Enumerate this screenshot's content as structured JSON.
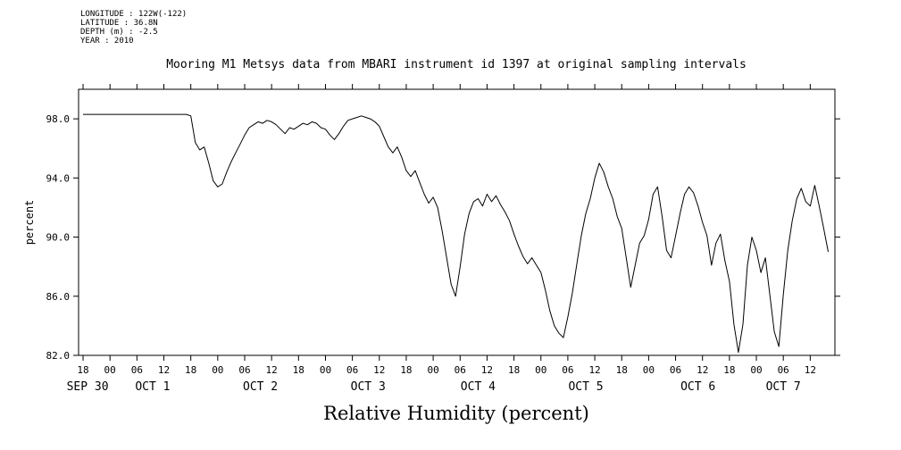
{
  "metadata": [
    "LONGITUDE : 122W(-122)",
    "LATITUDE : 36.8N",
    "DEPTH (m) : -2.5",
    "YEAR : 2010"
  ],
  "chart_data": {
    "type": "line",
    "title": "Mooring M1 Metsys data from MBARI instrument id 1397 at original sampling intervals",
    "ylabel": "percent",
    "xlabel": "Relative Humidity (percent)",
    "ylim": [
      82,
      100
    ],
    "yticks": [
      98.0,
      94.0,
      90.0,
      86.0,
      82.0
    ],
    "xlim_hours": [
      -1,
      167.5
    ],
    "x_tick_start_hour": 0,
    "x_tick_interval_hours": 6,
    "x_tick_labels": [
      "18",
      "00",
      "06",
      "12",
      "18",
      "00",
      "06",
      "12",
      "18",
      "00",
      "06",
      "12",
      "18",
      "00",
      "06",
      "12",
      "18",
      "00",
      "06",
      "12",
      "18",
      "00",
      "06",
      "12",
      "18",
      "00",
      "06",
      "12"
    ],
    "date_labels": [
      {
        "label": "SEP 30",
        "hour": 1
      },
      {
        "label": "OCT 1",
        "hour": 15.5
      },
      {
        "label": "OCT 2",
        "hour": 39.5
      },
      {
        "label": "OCT 3",
        "hour": 63.5
      },
      {
        "label": "OCT 4",
        "hour": 88
      },
      {
        "label": "OCT 5",
        "hour": 112
      },
      {
        "label": "OCT 6",
        "hour": 137
      },
      {
        "label": "OCT 7",
        "hour": 156
      }
    ],
    "x_start_hour": 0,
    "x_step_hours": 1,
    "values": [
      98.3,
      98.3,
      98.3,
      98.3,
      98.3,
      98.3,
      98.3,
      98.3,
      98.3,
      98.3,
      98.3,
      98.3,
      98.3,
      98.3,
      98.3,
      98.3,
      98.3,
      98.3,
      98.3,
      98.3,
      98.3,
      98.3,
      98.3,
      98.3,
      98.2,
      96.4,
      95.9,
      96.1,
      95.0,
      93.8,
      93.4,
      93.6,
      94.4,
      95.1,
      95.7,
      96.3,
      96.9,
      97.4,
      97.6,
      97.8,
      97.7,
      97.9,
      97.8,
      97.6,
      97.3,
      97.0,
      97.4,
      97.3,
      97.5,
      97.7,
      97.6,
      97.8,
      97.7,
      97.4,
      97.3,
      96.9,
      96.6,
      97.0,
      97.5,
      97.9,
      98.0,
      98.1,
      98.2,
      98.1,
      98.0,
      97.8,
      97.5,
      96.8,
      96.1,
      95.7,
      96.1,
      95.4,
      94.5,
      94.1,
      94.5,
      93.7,
      92.9,
      92.3,
      92.7,
      92.0,
      90.4,
      88.6,
      86.8,
      86.0,
      88.0,
      90.2,
      91.6,
      92.4,
      92.6,
      92.1,
      92.9,
      92.4,
      92.8,
      92.2,
      91.7,
      91.1,
      90.2,
      89.4,
      88.7,
      88.2,
      88.6,
      88.1,
      87.6,
      86.4,
      85.0,
      84.0,
      83.5,
      83.2,
      84.6,
      86.2,
      88.2,
      90.1,
      91.6,
      92.6,
      94.0,
      95.0,
      94.4,
      93.4,
      92.6,
      91.4,
      90.6,
      88.6,
      86.6,
      88.1,
      89.6,
      90.1,
      91.2,
      92.9,
      93.4,
      91.4,
      89.1,
      88.6,
      90.1,
      91.6,
      92.9,
      93.4,
      93.0,
      92.1,
      91.0,
      90.1,
      88.1,
      89.6,
      90.2,
      88.4,
      87.0,
      84.1,
      82.2,
      84.1,
      88.1,
      90.0,
      89.1,
      87.6,
      88.6,
      86.1,
      83.6,
      82.6,
      86.1,
      89.1,
      91.1,
      92.6,
      93.3,
      92.4,
      92.1,
      93.5,
      92.1,
      90.6,
      89.0
    ]
  }
}
